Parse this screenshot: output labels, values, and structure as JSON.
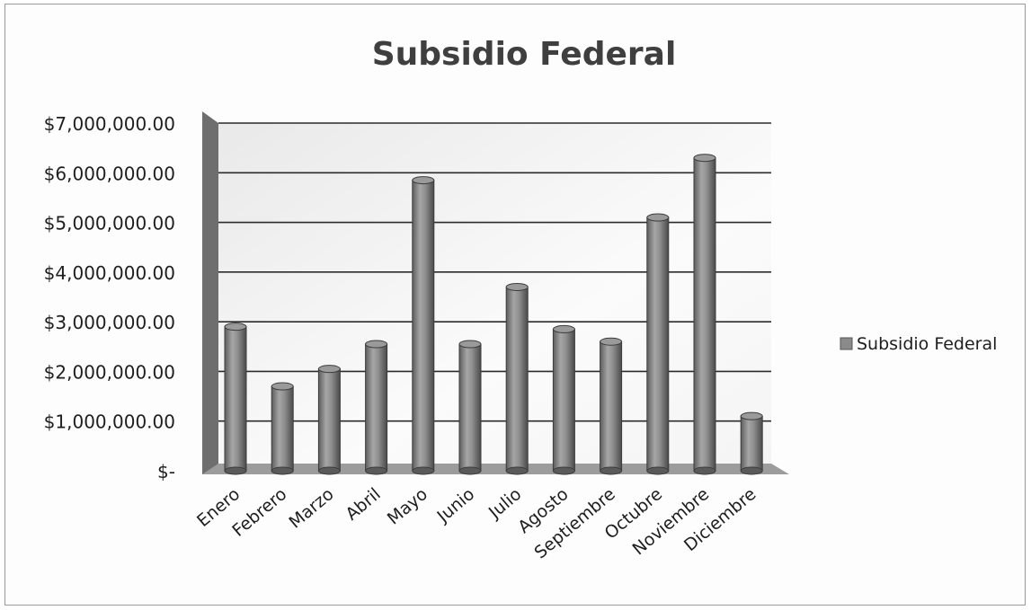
{
  "chart_data": {
    "type": "bar",
    "title": "Subsidio Federal",
    "categories": [
      "Enero",
      "Febrero",
      "Marzo",
      "Abril",
      "Mayo",
      "Junio",
      "Julio",
      "Agosto",
      "Septiembre",
      "Octubre",
      "Noviembre",
      "Diciembre"
    ],
    "series": [
      {
        "name": "Subsidio Federal",
        "values": [
          2900000,
          1700000,
          2050000,
          2550000,
          5850000,
          2550000,
          3700000,
          2850000,
          2600000,
          5100000,
          6300000,
          1100000
        ],
        "color": "#8a8a8a"
      }
    ],
    "y_ticks": [
      "$-",
      "$1,000,000.00",
      "$2,000,000.00",
      "$3,000,000.00",
      "$4,000,000.00",
      "$5,000,000.00",
      "$6,000,000.00",
      "$7,000,000.00"
    ],
    "ylim": [
      0,
      7000000
    ],
    "grid": true,
    "legend_position": "right"
  }
}
